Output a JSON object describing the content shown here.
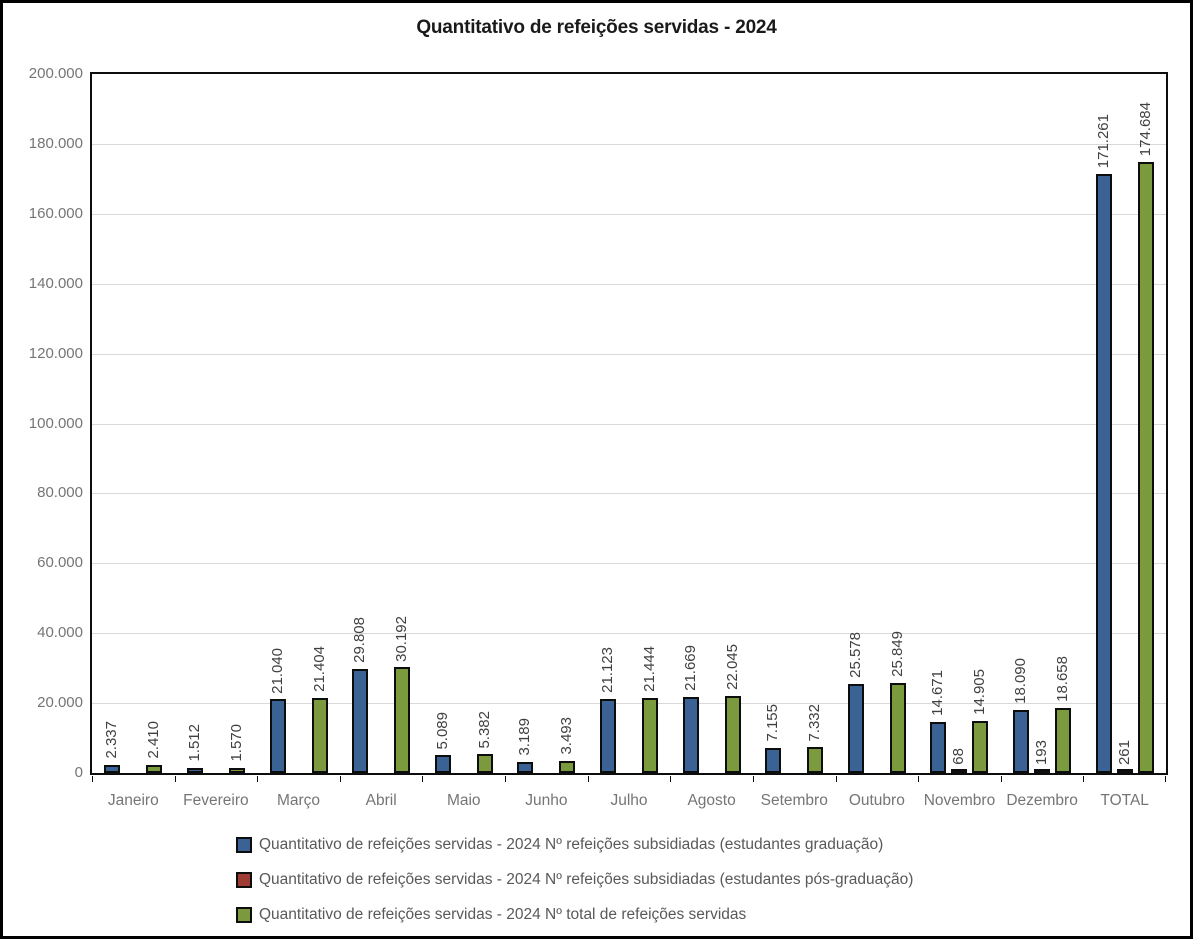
{
  "title": "Quantitativo de refeições servidas - 2024",
  "colors": {
    "series_graduacao": "#3a6295",
    "series_pos_graduacao": "#9e3b33",
    "series_total": "#7a9a3d",
    "bar_border": "#0d0d0d",
    "grid_line": "#d9d9d9",
    "axis_text": "#757575",
    "data_label_text": "#404040",
    "legend_text": "#595959",
    "plot_border": "#0d0d0d"
  },
  "chart_data": {
    "type": "bar",
    "title": "Quantitativo de refeições servidas - 2024",
    "xlabel": "",
    "ylabel": "",
    "ylim": [
      0,
      200000
    ],
    "ytick_step": 20000,
    "ytick_labels": [
      "0",
      "20.000",
      "40.000",
      "60.000",
      "80.000",
      "100.000",
      "120.000",
      "140.000",
      "160.000",
      "180.000",
      "200.000"
    ],
    "grid": true,
    "legend_position": "bottom",
    "number_format": "thousands-dot",
    "data_label_rotation": 90,
    "categories": [
      "Janeiro",
      "Fevereiro",
      "Março",
      "Abril",
      "Maio",
      "Junho",
      "Julho",
      "Agosto",
      "Setembro",
      "Outubro",
      "Novembro",
      "Dezembro",
      "TOTAL"
    ],
    "series": [
      {
        "name": "Quantitativo de refeições servidas - 2024 Nº refeições subsidiadas (estudantes graduação)",
        "color": "#3a6295",
        "values": [
          2337,
          1512,
          21040,
          29808,
          5089,
          3189,
          21123,
          21669,
          7155,
          25578,
          14671,
          18090,
          171261
        ],
        "labels": [
          "2.337",
          "1.512",
          "21.040",
          "29.808",
          "5.089",
          "3.189",
          "21.123",
          "21.669",
          "7.155",
          "25.578",
          "14.671",
          "18.090",
          "171.261"
        ]
      },
      {
        "name": "Quantitativo de refeições servidas - 2024 Nº refeições subsidiadas (estudantes pós-graduação)",
        "color": "#9e3b33",
        "values": [
          0,
          0,
          0,
          0,
          0,
          0,
          0,
          0,
          0,
          0,
          68,
          193,
          261
        ],
        "labels": [
          "",
          "",
          "",
          "",
          "",
          "",
          "",
          "",
          "",
          "",
          "68",
          "193",
          "261"
        ]
      },
      {
        "name": "Quantitativo de refeições servidas - 2024 Nº total de refeições servidas",
        "color": "#7a9a3d",
        "values": [
          2410,
          1570,
          21404,
          30192,
          5382,
          3493,
          21444,
          22045,
          7332,
          25849,
          14905,
          18658,
          174684
        ],
        "labels": [
          "2.410",
          "1.570",
          "21.404",
          "30.192",
          "5.382",
          "3.493",
          "21.444",
          "22.045",
          "7.332",
          "25.849",
          "14.905",
          "18.658",
          "174.684"
        ]
      }
    ]
  }
}
